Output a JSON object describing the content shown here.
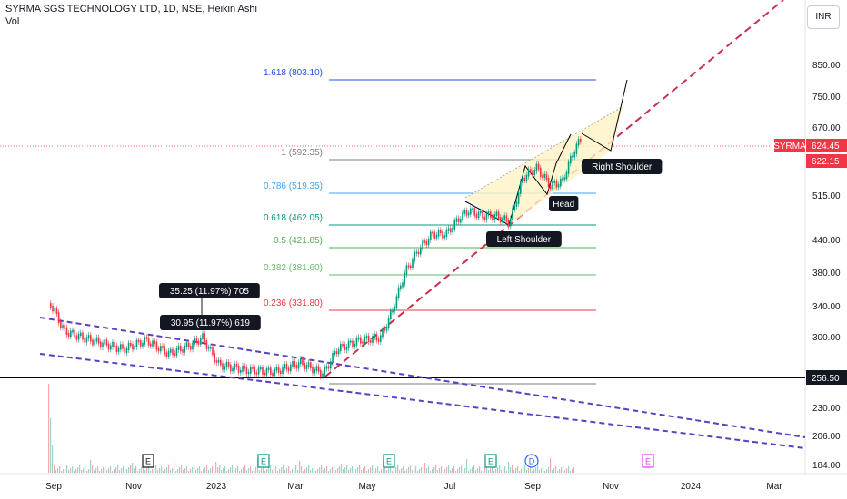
{
  "header": {
    "title": "SYRMA SGS TECHNOLOGY LTD, 1D, NSE, Heikin Ashi",
    "indicator": "Vol"
  },
  "currency_button": "INR",
  "chart_data": {
    "type": "candlestick",
    "symbol": "SYRMA",
    "price_axis_labels": [
      "850.00",
      "750.00",
      "670.00",
      "515.00",
      "440.00",
      "380.00",
      "340.00",
      "300.00",
      "230.00",
      "206.00",
      "184.00"
    ],
    "price_axis_values": [
      850,
      750,
      670,
      515,
      440,
      380,
      340,
      300,
      230,
      206,
      184
    ],
    "time_axis_labels": [
      "Sep",
      "Nov",
      "2023",
      "Mar",
      "May",
      "Jul",
      "Sep",
      "Nov",
      "2024",
      "Mar"
    ],
    "last_price_tag": {
      "symbol": "SYRMA",
      "price": "624.45",
      "value": 624.45
    },
    "prev_close_tag": {
      "price": "622.15",
      "value": 622.15
    },
    "horizontal_level": {
      "price": "256.50",
      "value": 256.5
    },
    "fibonacci": [
      {
        "ratio": "1.618",
        "price": "803.10",
        "value": 803.1,
        "color": "#1e53e5"
      },
      {
        "ratio": "1",
        "price": "592.35",
        "value": 592.35,
        "color": "#787b86"
      },
      {
        "ratio": "0.786",
        "price": "519.35",
        "value": 519.35,
        "color": "#42a5f5"
      },
      {
        "ratio": "0.618",
        "price": "462.05",
        "value": 462.05,
        "color": "#089981"
      },
      {
        "ratio": "0.5",
        "price": "421.85",
        "value": 421.85,
        "color": "#4caf50"
      },
      {
        "ratio": "0.382",
        "price": "381.60",
        "value": 381.6,
        "color": "#66bb6a"
      },
      {
        "ratio": "0.236",
        "price": "331.80",
        "value": 331.8,
        "color": "#f23645"
      }
    ],
    "pattern_labels": [
      "Left Shoulder",
      "Head",
      "Right Shoulder"
    ],
    "measure_labels": [
      {
        "text": "35.25 (11.97%) 705"
      },
      {
        "text": "30.95 (11.97%) 619"
      }
    ],
    "event_markers": [
      {
        "label": "E",
        "color": "#131722"
      },
      {
        "label": "E",
        "color": "#089981"
      },
      {
        "label": "E",
        "color": "#089981"
      },
      {
        "label": "E",
        "color": "#089981"
      },
      {
        "label": "D",
        "color": "#2962ff"
      },
      {
        "label": "E",
        "color": "#e040fb"
      }
    ],
    "colors": {
      "up": "#089981",
      "down": "#f23645",
      "trend": "#cc2f4e",
      "channel": "#5b3fc4"
    }
  }
}
